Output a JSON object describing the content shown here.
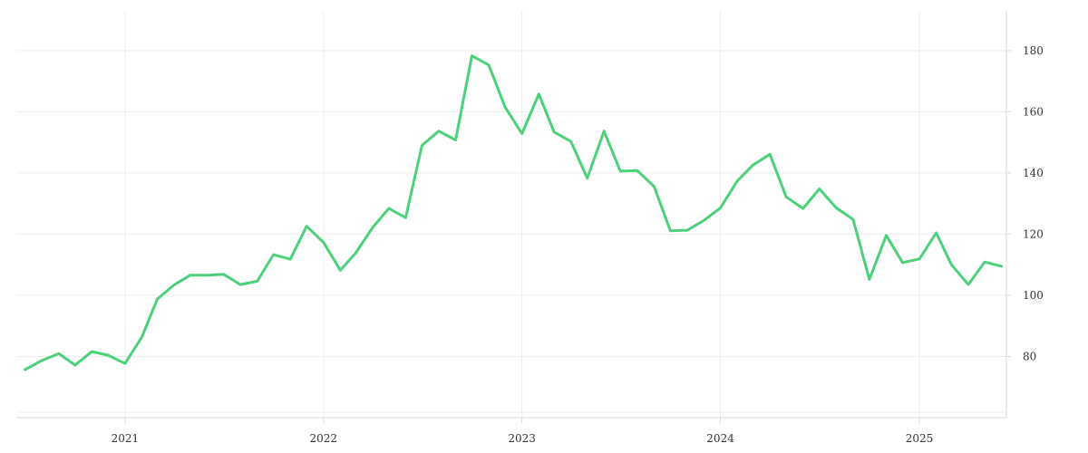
{
  "chart_data": {
    "type": "line",
    "title": "",
    "xlabel": "",
    "ylabel": "",
    "x_tick_labels": [
      "2021",
      "2022",
      "2023",
      "2024",
      "2025"
    ],
    "y_tick_labels": [
      "80",
      "100",
      "120",
      "140",
      "160",
      "180"
    ],
    "xlim": [
      "2020-06-15",
      "2025-06-10"
    ],
    "ylim": [
      60,
      193
    ],
    "grid": true,
    "y_axis_side": "right",
    "legend": "none",
    "line_color": "#4cd17a",
    "series": [
      {
        "x": [
          "2020-07-01",
          "2020-08-01",
          "2020-09-01",
          "2020-10-01",
          "2020-11-01",
          "2020-12-01",
          "2021-01-01",
          "2021-02-01",
          "2021-03-01",
          "2021-04-01",
          "2021-05-01",
          "2021-06-01",
          "2021-07-01",
          "2021-08-01",
          "2021-09-01",
          "2021-10-01",
          "2021-11-01",
          "2021-12-01",
          "2022-01-01",
          "2022-02-01",
          "2022-03-01",
          "2022-04-01",
          "2022-05-01",
          "2022-06-01",
          "2022-07-01",
          "2022-08-01",
          "2022-09-01",
          "2022-10-01",
          "2022-11-01",
          "2022-12-01",
          "2023-01-01",
          "2023-02-01",
          "2023-03-01",
          "2023-04-01",
          "2023-05-01",
          "2023-06-01",
          "2023-07-01",
          "2023-08-01",
          "2023-09-01",
          "2023-10-01",
          "2023-11-01",
          "2023-12-01",
          "2024-01-01",
          "2024-02-01",
          "2024-03-01",
          "2024-04-01",
          "2024-05-01",
          "2024-06-01",
          "2024-07-01",
          "2024-08-01",
          "2024-09-01",
          "2024-10-01",
          "2024-11-01",
          "2024-12-01",
          "2025-01-01",
          "2025-02-01",
          "2025-03-01",
          "2025-04-01",
          "2025-05-01",
          "2025-06-01"
        ],
        "values": [
          75.7,
          78.7,
          80.9,
          77.2,
          81.6,
          80.4,
          77.7,
          86.4,
          98.7,
          103.4,
          106.6,
          106.6,
          106.9,
          103.5,
          104.6,
          113.3,
          111.8,
          122.6,
          117.3,
          108.2,
          113.8,
          122.1,
          128.4,
          125.4,
          149.0,
          153.7,
          150.8,
          178.3,
          175.3,
          161.5,
          152.9,
          165.8,
          153.4,
          150.3,
          138.3,
          153.7,
          140.6,
          140.8,
          135.6,
          121.1,
          121.3,
          124.4,
          128.6,
          137.4,
          142.6,
          146.1,
          132.2,
          128.4,
          134.8,
          128.6,
          124.8,
          105.2,
          119.6,
          110.7,
          111.9,
          120.4,
          110.0,
          103.5,
          110.9,
          109.5
        ]
      }
    ]
  }
}
